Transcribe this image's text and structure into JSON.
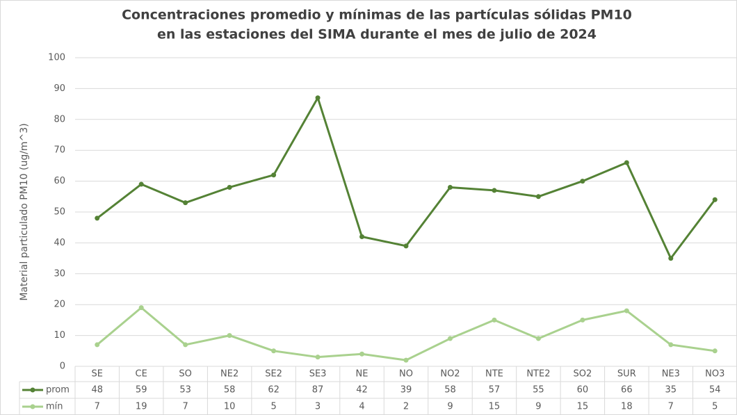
{
  "chart_data": {
    "type": "line",
    "title": [
      "Concentraciones promedio y mínimas de las partículas sólidas PM10",
      "en las estaciones del SIMA durante el mes de julio de 2024"
    ],
    "y_label": "Material particulado PM10 (ug/m^3)",
    "categories": [
      "SE",
      "CE",
      "SO",
      "NE2",
      "SE2",
      "SE3",
      "NE",
      "NO",
      "NO2",
      "NTE",
      "NTE2",
      "SO2",
      "SUR",
      "NE3",
      "NO3"
    ],
    "series": [
      {
        "name": "prom",
        "color": "#548235",
        "values": [
          48,
          59,
          53,
          58,
          62,
          87,
          42,
          39,
          58,
          57,
          55,
          60,
          66,
          35,
          54
        ]
      },
      {
        "name": "mín",
        "color": "#a9d18e",
        "values": [
          7,
          19,
          7,
          10,
          5,
          3,
          4,
          2,
          9,
          15,
          9,
          15,
          18,
          7,
          5
        ]
      }
    ],
    "ylim": [
      0,
      100
    ],
    "yticks": [
      0,
      10,
      20,
      30,
      40,
      50,
      60,
      70,
      80,
      90,
      100
    ],
    "grid": true
  }
}
